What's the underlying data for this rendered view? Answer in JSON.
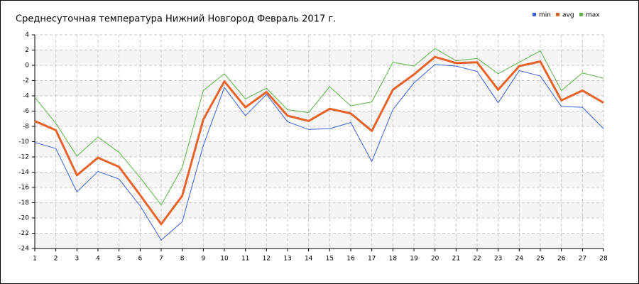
{
  "chart_data": {
    "type": "line",
    "title": "Среднесуточная температура Нижний Новгород  Февраль 2017 г.",
    "categories": [
      "1",
      "2",
      "3",
      "4",
      "5",
      "6",
      "7",
      "8",
      "9",
      "10",
      "11",
      "12",
      "13",
      "14",
      "15",
      "16",
      "17",
      "18",
      "19",
      "20",
      "21",
      "22",
      "23",
      "24",
      "25",
      "26",
      "27",
      "28"
    ],
    "series": [
      {
        "name": "min",
        "color": "#3a5fd9",
        "width": 1,
        "values": [
          -10.1,
          -10.9,
          -16.6,
          -13.9,
          -14.9,
          -18.4,
          -22.9,
          -20.5,
          -10.5,
          -2.9,
          -6.6,
          -3.8,
          -7.4,
          -8.4,
          -8.3,
          -7.5,
          -12.6,
          -5.8,
          -2.3,
          0.1,
          -0.1,
          -0.8,
          -4.9,
          -0.7,
          -1.4,
          -5.4,
          -5.5,
          -8.3
        ]
      },
      {
        "name": "avg",
        "color": "#e8632a",
        "width": 3,
        "values": [
          -7.3,
          -8.5,
          -14.4,
          -12.1,
          -13.3,
          -17.0,
          -20.8,
          -17.1,
          -7.1,
          -2.1,
          -5.5,
          -3.5,
          -6.6,
          -7.3,
          -5.7,
          -6.3,
          -8.6,
          -3.2,
          -1.2,
          1.1,
          0.3,
          0.4,
          -3.2,
          -0.1,
          0.5,
          -4.6,
          -3.3,
          -4.9
        ]
      },
      {
        "name": "max",
        "color": "#5bb547",
        "width": 1,
        "values": [
          -4.2,
          -7.6,
          -11.9,
          -9.4,
          -11.4,
          -14.7,
          -18.3,
          -13.4,
          -3.3,
          -1.1,
          -4.4,
          -3.0,
          -5.8,
          -6.2,
          -2.8,
          -5.3,
          -4.8,
          0.4,
          -0.1,
          2.2,
          0.6,
          0.9,
          -1.1,
          0.4,
          1.9,
          -3.3,
          -1.0,
          -1.7
        ]
      }
    ],
    "ylim": [
      -24,
      4
    ],
    "yticks": [
      -24,
      -22,
      -20,
      -18,
      -16,
      -14,
      -12,
      -10,
      -8,
      -6,
      -4,
      -2,
      0,
      2,
      4
    ],
    "grid": true,
    "legend": "top-right"
  }
}
